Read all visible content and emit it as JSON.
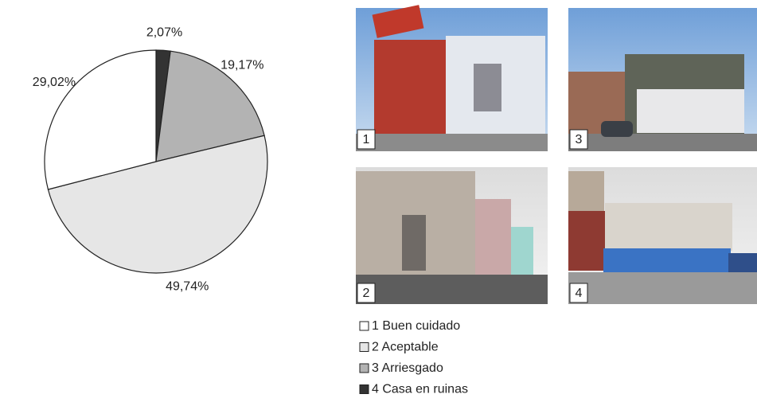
{
  "chart_data": {
    "type": "pie",
    "categories": [
      "1 Buen cuidado",
      "2 Aceptable",
      "3 Arriesgado",
      "4 Casa en ruinas"
    ],
    "values": [
      29.02,
      49.74,
      19.17,
      2.07
    ],
    "value_labels": [
      "29,02%",
      "49,74%",
      "19,17%",
      "2,07%"
    ],
    "colors": [
      "#ffffff",
      "#e6e6e6",
      "#b3b3b3",
      "#333333"
    ],
    "direction": "counterclockwise-from-top"
  },
  "photos": [
    {
      "label": "1"
    },
    {
      "label": "2"
    },
    {
      "label": "3"
    },
    {
      "label": "4"
    }
  ]
}
